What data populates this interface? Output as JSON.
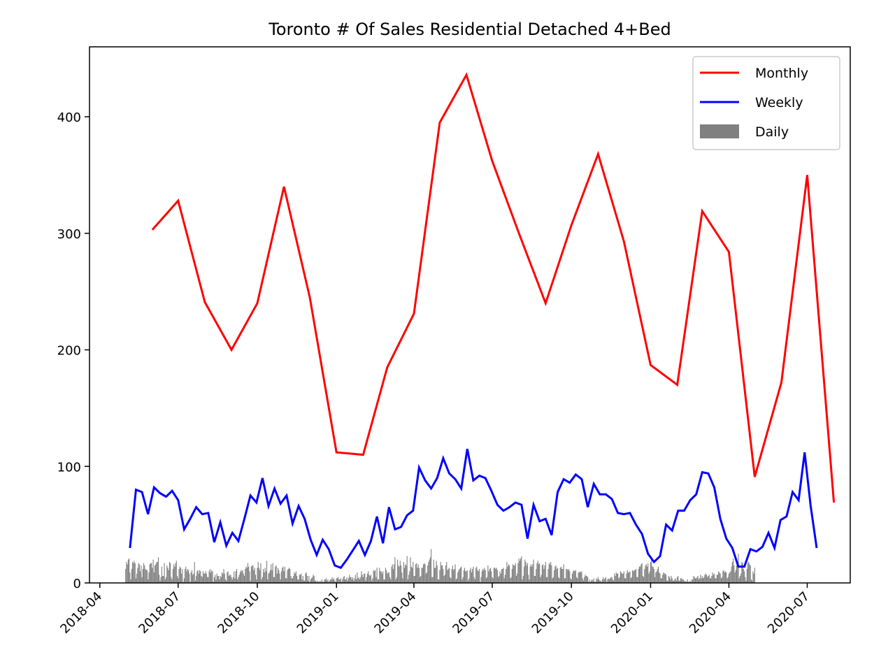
{
  "chart_data": {
    "type": "line",
    "title": "Toronto # Of Sales Residential Detached 4+Bed",
    "xlabel": "",
    "ylabel": "",
    "x_axis": {
      "kind": "date",
      "range": [
        "2018-03-20",
        "2020-08-20"
      ],
      "ticks": [
        "2018-04",
        "2018-07",
        "2018-10",
        "2019-01",
        "2019-04",
        "2019-07",
        "2019-10",
        "2020-01",
        "2020-04",
        "2020-07"
      ]
    },
    "y_axis": {
      "range": [
        0,
        460
      ],
      "ticks": [
        0,
        100,
        200,
        300,
        400
      ]
    },
    "grid": false,
    "legend": {
      "placement": "top-right",
      "entries": [
        "Monthly",
        "Weekly",
        "Daily"
      ]
    },
    "series": [
      {
        "name": "Monthly",
        "color": "#ff0000",
        "style": "line",
        "points": [
          [
            "2018-06-01",
            303
          ],
          [
            "2018-07-01",
            328
          ],
          [
            "2018-08-01",
            241
          ],
          [
            "2018-09-01",
            200
          ],
          [
            "2018-10-01",
            240
          ],
          [
            "2018-11-01",
            340
          ],
          [
            "2018-12-01",
            245
          ],
          [
            "2019-01-01",
            112
          ],
          [
            "2019-02-01",
            110
          ],
          [
            "2019-03-01",
            185
          ],
          [
            "2019-04-01",
            231
          ],
          [
            "2019-05-01",
            395
          ],
          [
            "2019-06-01",
            436
          ],
          [
            "2019-07-01",
            362
          ],
          [
            "2019-08-01",
            300
          ],
          [
            "2019-09-01",
            240
          ],
          [
            "2019-10-01",
            307
          ],
          [
            "2019-11-01",
            368
          ],
          [
            "2019-12-01",
            293
          ],
          [
            "2020-01-01",
            187
          ],
          [
            "2020-02-01",
            170
          ],
          [
            "2020-03-01",
            319
          ],
          [
            "2020-04-01",
            284
          ],
          [
            "2020-05-01",
            91
          ],
          [
            "2020-06-01",
            172
          ],
          [
            "2020-07-01",
            350
          ],
          [
            "2020-08-01",
            69
          ]
        ]
      },
      {
        "name": "Weekly",
        "color": "#0000ff",
        "style": "line",
        "start": "2018-05-06",
        "interval_days": 7,
        "values": [
          30,
          80,
          78,
          59,
          82,
          77,
          74,
          79,
          71,
          46,
          55,
          65,
          59,
          60,
          35,
          52,
          32,
          43,
          36,
          55,
          75,
          69,
          90,
          66,
          81,
          68,
          75,
          51,
          66,
          55,
          37,
          24,
          37,
          29,
          15,
          13,
          20,
          28,
          36,
          24,
          36,
          57,
          34,
          65,
          46,
          48,
          58,
          62,
          99,
          88,
          81,
          90,
          107,
          94,
          89,
          81,
          115,
          88,
          92,
          90,
          79,
          67,
          62,
          65,
          69,
          67,
          38,
          67,
          53,
          55,
          41,
          78,
          89,
          86,
          93,
          89,
          65,
          85,
          76,
          76,
          72,
          60,
          59,
          60,
          50,
          42,
          25,
          18,
          23,
          50,
          45,
          62,
          62,
          71,
          76,
          95,
          94,
          82,
          55,
          38,
          30,
          14,
          14,
          29,
          27,
          31,
          43,
          30,
          54,
          57,
          78,
          71,
          112,
          66,
          30
        ]
      },
      {
        "name": "Daily",
        "color": "#808080",
        "style": "bar",
        "start": "2018-05-01",
        "interval_days": 1,
        "values": [
          12,
          18,
          16,
          20,
          21,
          9,
          3,
          12,
          18,
          17,
          19,
          17,
          4,
          8,
          13,
          17,
          16,
          10,
          15,
          5,
          12,
          17,
          15,
          12,
          11,
          11,
          3,
          9,
          16,
          17,
          17,
          13,
          20,
          9,
          15,
          16,
          18,
          18,
          22,
          7,
          2,
          5,
          14,
          6,
          6,
          17,
          3,
          5,
          15,
          13,
          11,
          18,
          17,
          5,
          3,
          12,
          16,
          14,
          17,
          19,
          6,
          4,
          12,
          14,
          13,
          8,
          12,
          1,
          4,
          12,
          14,
          10,
          12,
          11,
          8,
          1,
          9,
          11,
          7,
          8,
          18,
          2,
          6,
          10,
          11,
          8,
          11,
          10,
          6,
          5,
          10,
          8,
          8,
          10,
          8,
          5,
          5,
          10,
          12,
          9,
          11,
          10,
          1,
          5,
          7,
          3,
          8,
          6,
          6,
          3,
          6,
          5,
          9,
          8,
          12,
          8,
          3,
          2,
          9,
          10,
          6,
          7,
          7,
          5,
          3,
          5,
          10,
          4,
          10,
          12,
          3,
          5,
          7,
          9,
          11,
          10,
          11,
          8,
          6,
          12,
          14,
          13,
          17,
          14,
          10,
          2,
          14,
          15,
          15,
          11,
          13,
          7,
          3,
          13,
          18,
          13,
          11,
          17,
          3,
          5,
          12,
          9,
          13,
          10,
          19,
          3,
          8,
          9,
          11,
          16,
          11,
          17,
          5,
          5,
          14,
          15,
          8,
          13,
          11,
          8,
          3,
          10,
          13,
          14,
          10,
          14,
          4,
          4,
          11,
          12,
          13,
          12,
          6,
          4,
          4,
          6,
          9,
          8,
          10,
          6,
          3,
          3,
          7,
          7,
          8,
          3,
          6,
          2,
          2,
          8,
          9,
          6,
          2,
          6,
          1,
          3,
          4,
          5,
          7,
          6,
          2,
          2,
          1,
          2,
          1,
          1,
          2,
          1,
          3,
          1,
          1,
          3,
          3,
          4,
          2,
          3,
          1,
          2,
          3,
          3,
          5,
          3,
          4,
          2,
          1,
          4,
          4,
          5,
          3,
          3,
          4,
          1,
          3,
          5,
          6,
          3,
          3,
          5,
          2,
          4,
          7,
          5,
          5,
          3,
          5,
          2,
          4,
          7,
          3,
          9,
          4,
          5,
          3,
          5,
          10,
          7,
          5,
          8,
          8,
          2,
          5,
          8,
          10,
          7,
          6,
          7,
          2,
          4,
          11,
          10,
          11,
          5,
          13,
          3,
          3,
          13,
          10,
          10,
          8,
          10,
          3,
          3,
          13,
          11,
          8,
          9,
          9,
          5,
          3,
          14,
          16,
          12,
          16,
          22,
          3,
          5,
          20,
          15,
          14,
          19,
          15,
          9,
          4,
          18,
          13,
          16,
          15,
          23,
          3,
          7,
          10,
          22,
          14,
          13,
          18,
          6,
          6,
          16,
          17,
          13,
          16,
          13,
          5,
          6,
          13,
          13,
          16,
          17,
          16,
          8,
          9,
          15,
          18,
          20,
          22,
          29,
          5,
          5,
          20,
          13,
          13,
          19,
          15,
          3,
          3,
          11,
          18,
          15,
          15,
          12,
          6,
          7,
          15,
          18,
          11,
          12,
          13,
          5,
          4,
          12,
          15,
          11,
          12,
          16,
          3,
          4,
          9,
          11,
          12,
          13,
          14,
          3,
          5,
          11,
          13,
          10,
          10,
          11,
          2,
          4,
          11,
          13,
          9,
          12,
          14,
          5,
          3,
          13,
          14,
          11,
          10,
          12,
          1,
          5,
          10,
          12,
          11,
          13,
          11,
          4,
          5,
          15,
          10,
          12,
          13,
          10,
          5,
          4,
          13,
          13,
          12,
          13,
          11,
          5,
          6,
          10,
          8,
          12,
          12,
          13,
          4,
          7,
          12,
          18,
          14,
          16,
          15,
          4,
          5,
          12,
          16,
          15,
          15,
          17,
          6,
          8,
          17,
          21,
          19,
          21,
          23,
          3,
          6,
          14,
          20,
          18,
          15,
          17,
          7,
          3,
          14,
          16,
          14,
          16,
          20,
          6,
          6,
          12,
          17,
          19,
          16,
          17,
          5,
          7,
          15,
          16,
          12,
          15,
          18,
          5,
          5,
          12,
          17,
          16,
          18,
          15,
          4,
          5,
          11,
          14,
          15,
          12,
          13,
          5,
          4,
          13,
          14,
          12,
          12,
          16,
          4,
          4,
          12,
          12,
          11,
          12,
          10,
          4,
          3,
          8,
          10,
          11,
          10,
          11,
          5,
          4,
          9,
          9,
          10,
          9,
          10,
          4,
          2,
          5,
          7,
          6,
          6,
          5,
          1,
          3,
          1,
          2,
          3,
          2,
          4,
          1,
          1,
          4,
          3,
          5,
          3,
          2,
          2,
          1,
          3,
          5,
          3,
          4,
          5,
          1,
          3,
          4,
          3,
          4,
          5,
          5,
          3,
          2,
          8,
          6,
          9,
          8,
          8,
          4,
          5,
          10,
          9,
          8,
          8,
          10,
          4,
          4,
          8,
          11,
          9,
          9,
          10,
          4,
          5,
          11,
          10,
          11,
          11,
          12,
          5,
          5,
          12,
          14,
          14,
          16,
          17,
          6,
          5,
          12,
          15,
          16,
          14,
          17,
          8,
          10,
          18,
          20,
          14,
          14,
          12,
          5,
          9,
          10,
          12,
          14,
          9,
          8,
          4,
          4,
          7,
          9,
          8,
          8,
          7,
          2,
          2,
          6,
          5,
          3,
          6,
          4,
          2,
          2,
          3,
          4,
          2,
          5,
          6,
          2,
          2,
          4,
          4,
          3,
          3,
          2,
          1,
          2,
          1,
          3,
          1,
          1,
          2,
          1,
          3,
          3,
          6,
          5,
          4,
          4,
          5,
          6,
          3,
          4,
          7,
          4,
          6,
          4,
          5,
          7,
          8,
          7,
          5,
          6,
          7,
          4,
          4,
          6,
          9,
          7,
          8,
          4,
          4,
          7,
          7,
          10,
          9,
          8,
          4,
          5,
          10,
          11,
          9,
          10,
          9,
          4,
          5,
          8,
          9,
          10,
          14,
          18,
          21,
          15,
          9,
          11,
          15,
          16,
          25,
          4,
          6,
          8,
          18,
          17,
          12,
          10,
          5,
          2,
          12,
          17,
          18,
          16,
          15,
          3,
          2,
          10,
          8,
          13
        ]
      }
    ]
  }
}
